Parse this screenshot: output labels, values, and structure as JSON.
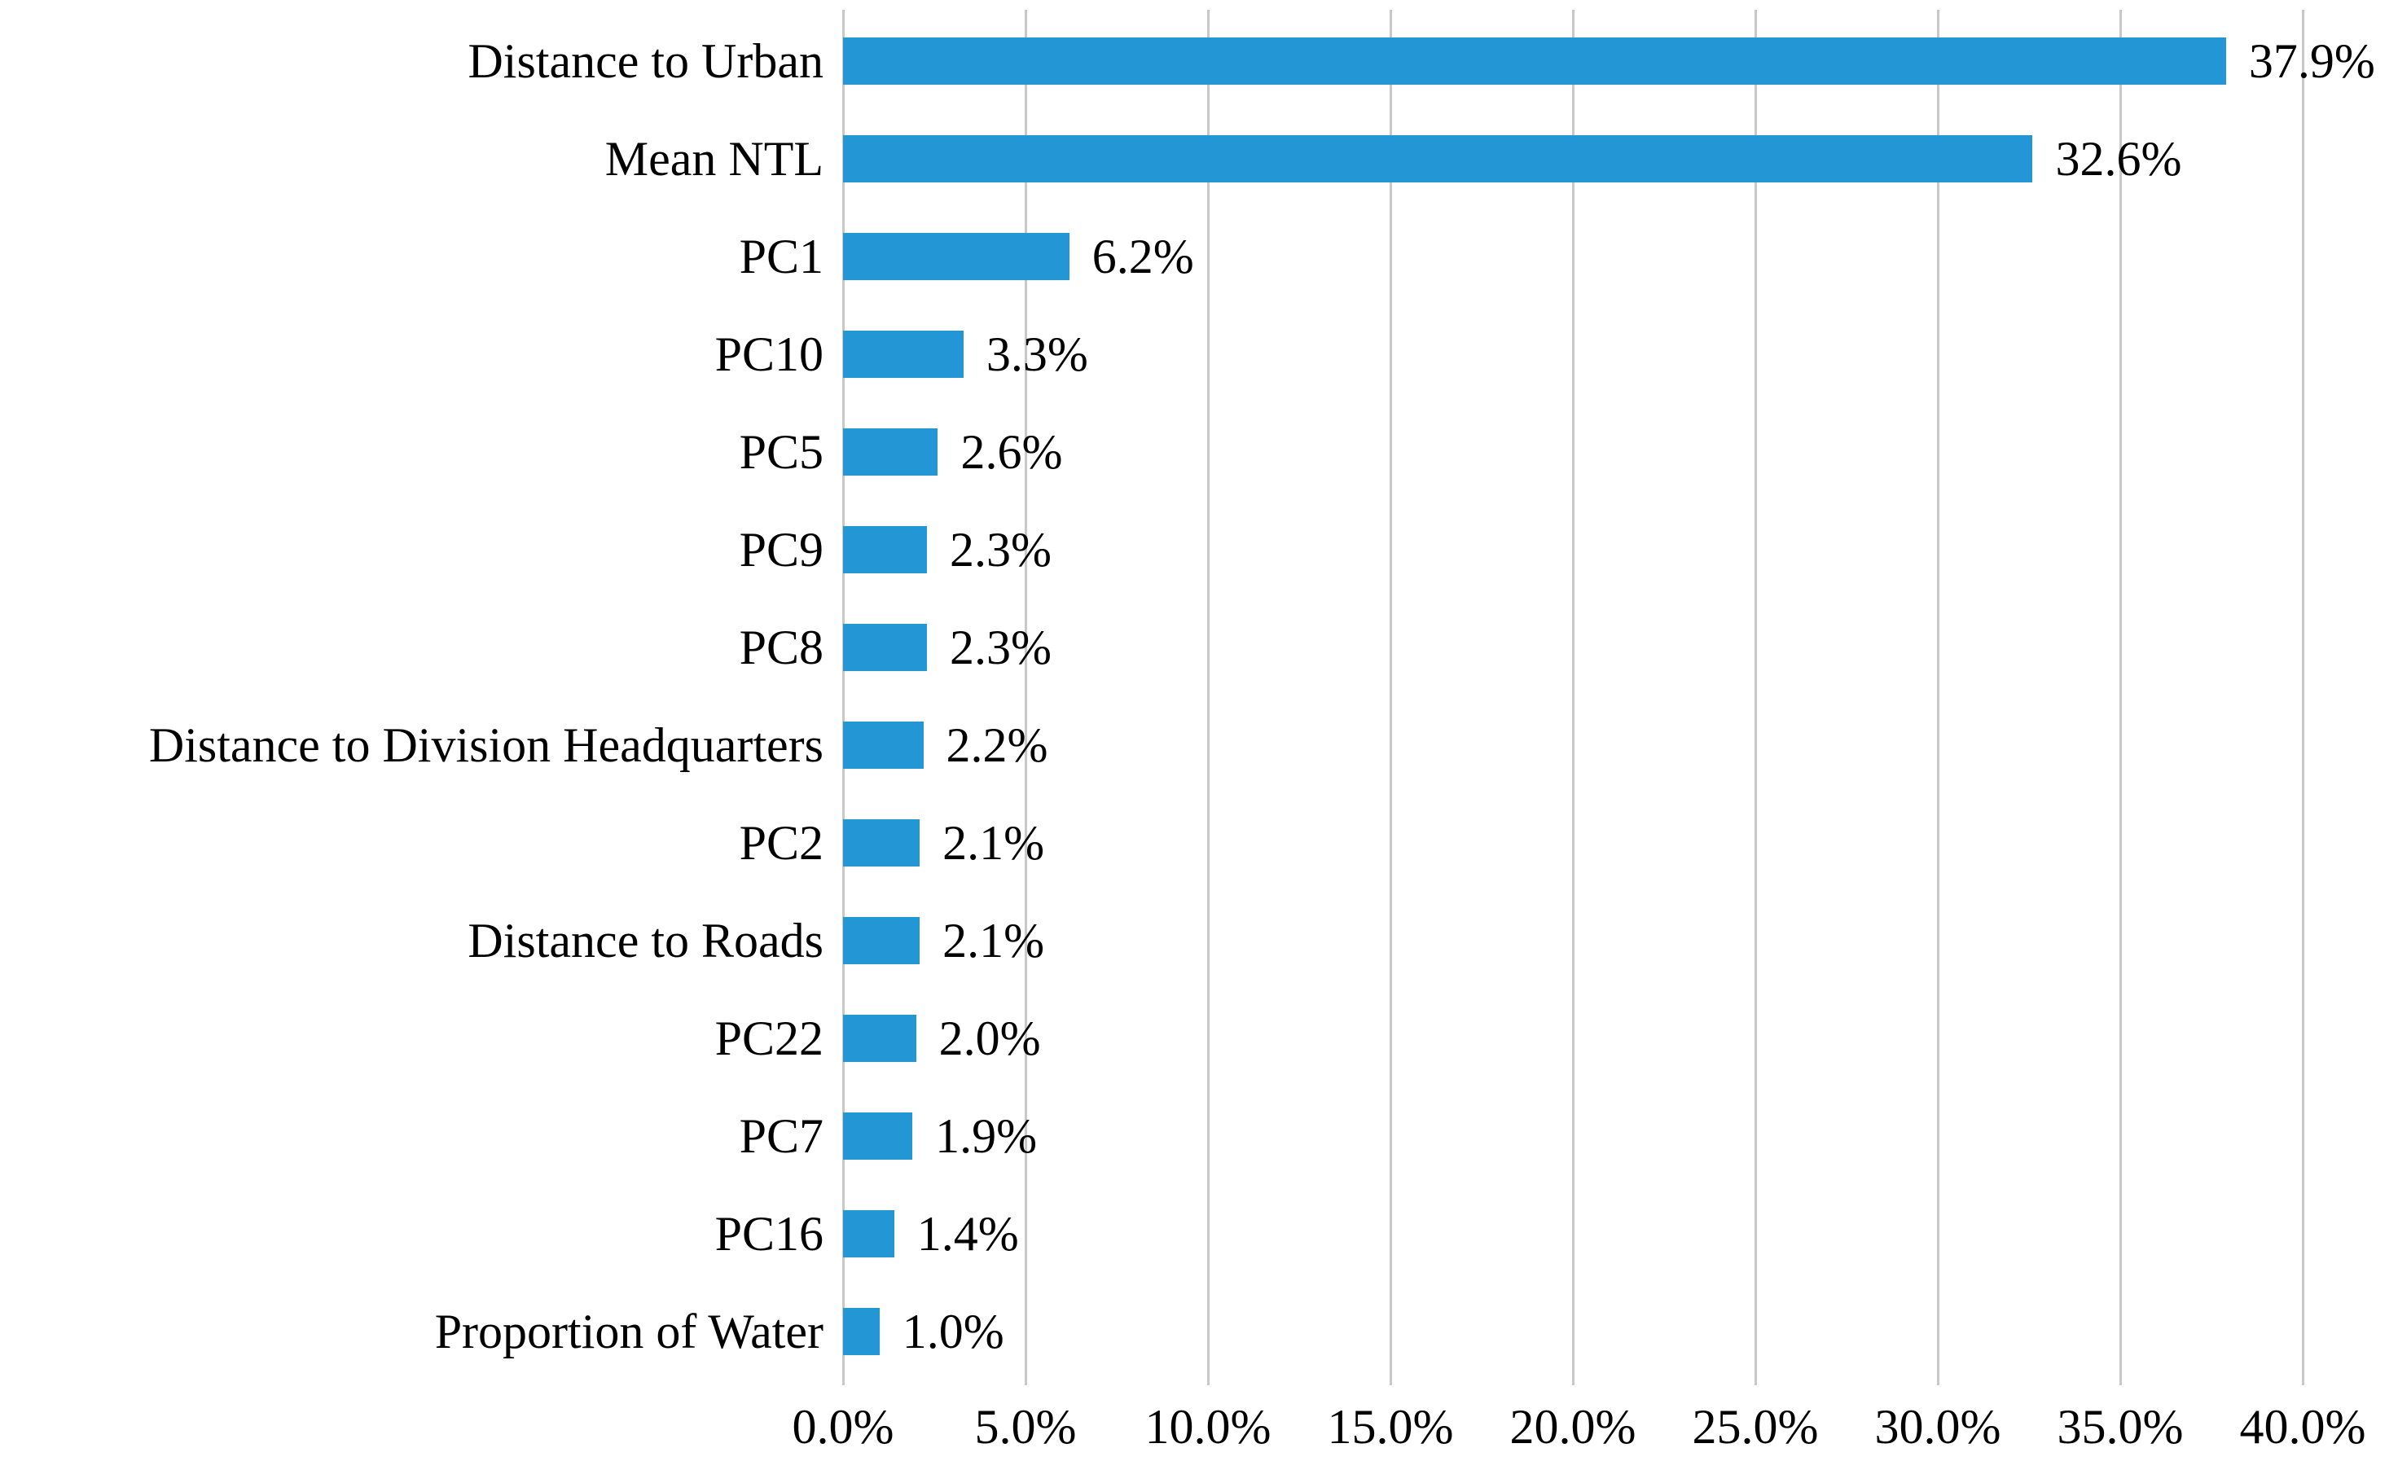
{
  "chart_data": {
    "type": "bar",
    "orientation": "horizontal",
    "title": "",
    "xlabel": "",
    "ylabel": "",
    "categories": [
      "Distance to Urban",
      "Mean NTL",
      "PC1",
      "PC10",
      "PC5",
      "PC9",
      "PC8",
      "Distance to Division Headquarters",
      "PC2",
      "Distance to Roads",
      "PC22",
      "PC7",
      "PC16",
      "Proportion of Water"
    ],
    "values": [
      37.9,
      32.6,
      6.2,
      3.3,
      2.6,
      2.3,
      2.3,
      2.2,
      2.1,
      2.1,
      2.0,
      1.9,
      1.4,
      1.0
    ],
    "value_labels": [
      "37.9%",
      "32.6%",
      "6.2%",
      "3.3%",
      "2.6%",
      "2.3%",
      "2.3%",
      "2.2%",
      "2.1%",
      "2.1%",
      "2.0%",
      "1.9%",
      "1.4%",
      "1.0%"
    ],
    "xlim": [
      0,
      40
    ],
    "x_tick_values": [
      0,
      5,
      10,
      15,
      20,
      25,
      30,
      35,
      40
    ],
    "x_tick_labels": [
      "0.0%",
      "5.0%",
      "10.0%",
      "15.0%",
      "20.0%",
      "25.0%",
      "30.0%",
      "35.0%",
      "40.0%"
    ],
    "grid": "vertical",
    "legend": "none",
    "colors": {
      "bar": "#2397d5",
      "gridline": "#c8c8c8",
      "text": "#000000",
      "background": "#ffffff"
    }
  }
}
